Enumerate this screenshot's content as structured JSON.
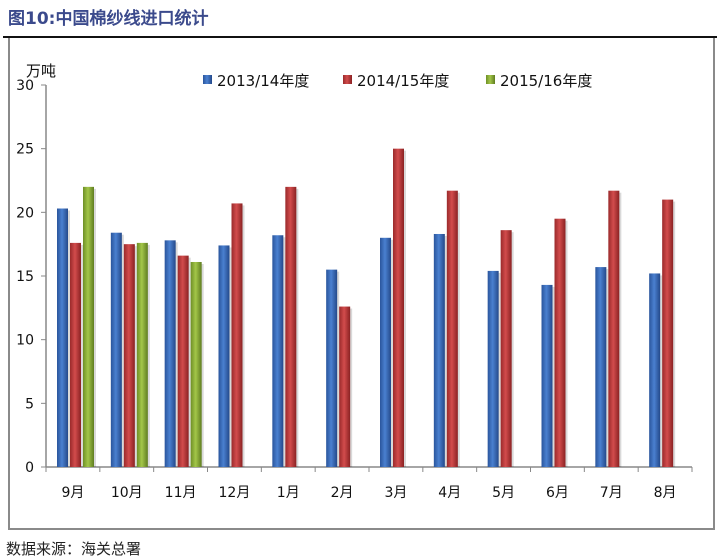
{
  "title": "图10:中国棉纱线进口统计",
  "source": "数据来源：海关总署",
  "chart_data": {
    "type": "bar",
    "ylabel": "万吨",
    "ylim": [
      0,
      30
    ],
    "yticks": [
      0,
      5,
      10,
      15,
      20,
      25,
      30
    ],
    "grid": false,
    "legend_position": "top",
    "categories": [
      "9月",
      "10月",
      "11月",
      "12月",
      "1月",
      "2月",
      "3月",
      "4月",
      "5月",
      "6月",
      "7月",
      "8月"
    ],
    "series": [
      {
        "name": "2013/14年度",
        "color": "#3a6fc0",
        "values": [
          20.3,
          18.4,
          17.8,
          17.4,
          18.2,
          15.5,
          18.0,
          18.3,
          15.4,
          14.3,
          15.7,
          15.2
        ]
      },
      {
        "name": "2014/15年度",
        "color": "#c0393a",
        "values": [
          17.6,
          17.5,
          16.6,
          20.7,
          22.0,
          12.6,
          25.0,
          21.7,
          18.6,
          19.5,
          21.7,
          21.0
        ]
      },
      {
        "name": "2015/16年度",
        "color": "#8fb33a",
        "values": [
          22.0,
          17.6,
          16.1,
          null,
          null,
          null,
          null,
          null,
          null,
          null,
          null,
          null
        ]
      }
    ]
  }
}
